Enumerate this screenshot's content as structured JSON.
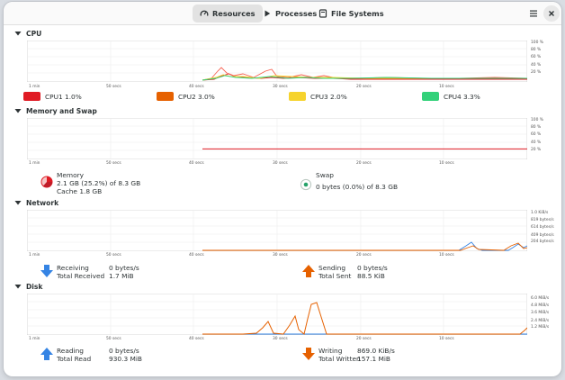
{
  "tabs": [
    {
      "label": "Resources",
      "active": true
    },
    {
      "label": "Processes",
      "active": false
    },
    {
      "label": "File Systems",
      "active": false
    }
  ],
  "cpu": {
    "title": "CPU",
    "y_ticks": [
      "100 %",
      "80 %",
      "60 %",
      "40 %",
      "20 %"
    ],
    "x_ticks": [
      "1 min",
      "50 secs",
      "40 secs",
      "30 secs",
      "20 secs",
      "10 secs"
    ],
    "legend": [
      {
        "label": "CPU1",
        "value": "1.0%",
        "color": "#e01b24"
      },
      {
        "label": "CPU2",
        "value": "3.0%",
        "color": "#f66151"
      },
      {
        "label": "CPU3",
        "value": "2.0%",
        "color": "#f6d32d"
      },
      {
        "label": "CPU4",
        "value": "3.3%",
        "color": "#33d17a"
      }
    ]
  },
  "memory": {
    "title": "Memory and Swap",
    "y_ticks": [
      "100 %",
      "80 %",
      "60 %",
      "40 %",
      "20 %"
    ],
    "x_ticks": [
      "1 min",
      "50 secs",
      "40 secs",
      "30 secs",
      "20 secs",
      "10 secs"
    ],
    "memory_label": "Memory",
    "memory_value": "2.1 GB (25.2%) of 8.3 GB",
    "cache_value": "Cache 1.8 GB",
    "memory_fraction": 0.252,
    "swap_label": "Swap",
    "swap_value": "0 bytes (0.0%) of 8.3 GB"
  },
  "network": {
    "title": "Network",
    "y_ticks": [
      "1.0 KiB/s",
      "819 bytes/s",
      "614 bytes/s",
      "409 bytes/s",
      "204 bytes/s"
    ],
    "x_ticks": [
      "1 min",
      "50 secs",
      "40 secs",
      "30 secs",
      "20 secs",
      "10 secs"
    ],
    "receiving_label": "Receiving",
    "receiving_value": "0 bytes/s",
    "total_received_label": "Total Received",
    "total_received_value": "1.7 MiB",
    "sending_label": "Sending",
    "sending_value": "0 bytes/s",
    "total_sent_label": "Total Sent",
    "total_sent_value": "88.5 KiB"
  },
  "disk": {
    "title": "Disk",
    "y_ticks": [
      "6.0 MiB/s",
      "4.8 MiB/s",
      "3.6 MiB/s",
      "2.4 MiB/s",
      "1.2 MiB/s"
    ],
    "x_ticks": [
      "1 min",
      "50 secs",
      "40 secs",
      "30 secs",
      "20 secs",
      "10 secs"
    ],
    "reading_label": "Reading",
    "reading_value": "0 bytes/s",
    "total_read_label": "Total Read",
    "total_read_value": "930.3 MiB",
    "writing_label": "Writing",
    "writing_value": "869.0 KiB/s",
    "total_written_label": "Total Written",
    "total_written_value": "157.1 MiB"
  },
  "colors": {
    "receiving_arrow": "#3584e4",
    "sending_arrow": "#e66100",
    "memory_line": "#e01b24",
    "disk_read": "#3584e4",
    "disk_write": "#e66100"
  }
}
